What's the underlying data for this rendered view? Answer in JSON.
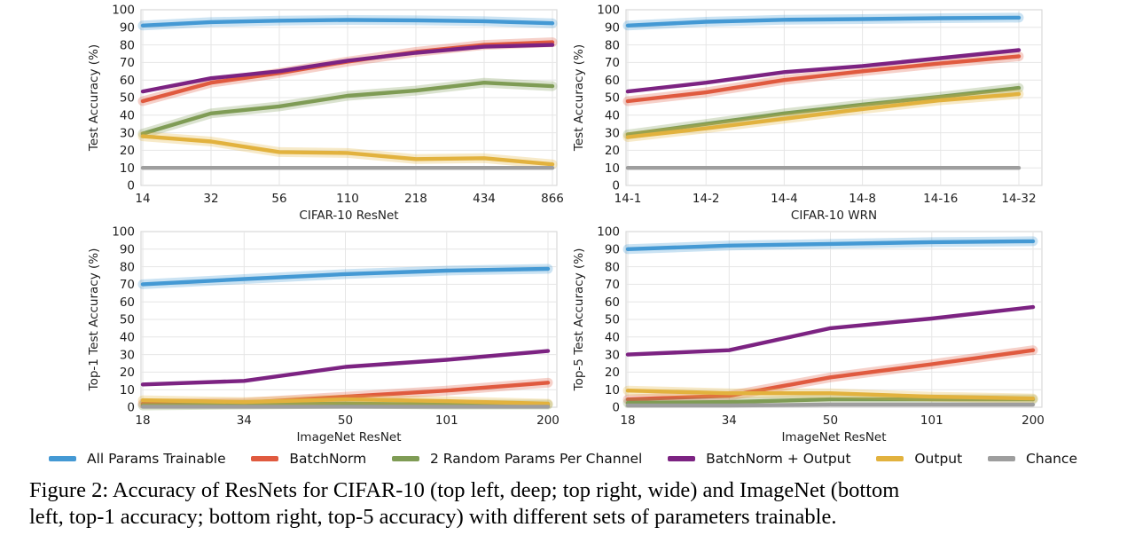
{
  "palette": {
    "blue": "#4499d4",
    "red": "#e05a3f",
    "green": "#7f9c55",
    "purple": "#7c2382",
    "orange": "#e2b23e",
    "gray": "#9e9e9e"
  },
  "chart_data": [
    {
      "type": "line",
      "xlabel": "CIFAR-10 ResNet",
      "ylabel": "Test Accuracy (%)",
      "ylim": [
        0,
        100
      ],
      "ytick_step": 10,
      "grid": true,
      "xpad": [
        2,
        5
      ],
      "categories": [
        "14",
        "32",
        "56",
        "110",
        "218",
        "434",
        "866"
      ],
      "series": [
        {
          "name": "All Params Trainable",
          "color": "#4499d4",
          "band": true,
          "values": [
            91,
            93,
            93.8,
            94.2,
            94,
            93.5,
            92.3
          ]
        },
        {
          "name": "BatchNorm",
          "color": "#e05a3f",
          "band": true,
          "values": [
            48,
            58.5,
            64,
            70.5,
            76,
            80,
            81.5
          ]
        },
        {
          "name": "2 Random Params Per Channel",
          "color": "#7f9c55",
          "band": true,
          "values": [
            29.5,
            41,
            45,
            51,
            54,
            58.5,
            56.5
          ]
        },
        {
          "name": "BatchNorm + Output",
          "color": "#7c2382",
          "band": false,
          "values": [
            53.5,
            61,
            65,
            71,
            75.5,
            79,
            80
          ]
        },
        {
          "name": "Output",
          "color": "#e2b23e",
          "band": true,
          "values": [
            28,
            25,
            19,
            18.5,
            15,
            15.5,
            12
          ]
        },
        {
          "name": "Chance",
          "color": "#9e9e9e",
          "band": false,
          "values": [
            10,
            10,
            10,
            10,
            10,
            10,
            10
          ]
        }
      ]
    },
    {
      "type": "line",
      "xlabel": "CIFAR-10 WRN",
      "ylabel": "Test Accuracy (%)",
      "ylim": [
        0,
        100
      ],
      "ytick_step": 10,
      "grid": true,
      "xpad": [
        2,
        26
      ],
      "categories": [
        "14-1",
        "14-2",
        "14-4",
        "14-8",
        "14-16",
        "14-32"
      ],
      "series": [
        {
          "name": "All Params Trainable",
          "color": "#4499d4",
          "band": true,
          "values": [
            91,
            93.2,
            94.3,
            94.7,
            95.2,
            95.5
          ]
        },
        {
          "name": "BatchNorm",
          "color": "#e05a3f",
          "band": true,
          "values": [
            48,
            53,
            60,
            65,
            69.5,
            73.5
          ]
        },
        {
          "name": "2 Random Params Per Channel",
          "color": "#7f9c55",
          "band": true,
          "values": [
            29,
            35,
            41,
            46,
            50.5,
            55.5
          ]
        },
        {
          "name": "BatchNorm + Output",
          "color": "#7c2382",
          "band": false,
          "values": [
            53.5,
            58.5,
            64.5,
            68,
            72.5,
            77
          ]
        },
        {
          "name": "Output",
          "color": "#e2b23e",
          "band": true,
          "values": [
            27.5,
            32.5,
            38,
            43.5,
            48.5,
            52
          ]
        },
        {
          "name": "Chance",
          "color": "#9e9e9e",
          "band": false,
          "values": [
            10,
            10,
            10,
            10,
            10,
            10
          ]
        }
      ]
    },
    {
      "type": "line",
      "xlabel": "ImageNet ResNet",
      "ylabel": "Top-1 Test Accuracy (%)",
      "ylim": [
        0,
        100
      ],
      "ytick_step": 10,
      "grid": true,
      "xpad": [
        2,
        10
      ],
      "categories": [
        "18",
        "34",
        "50",
        "101",
        "200"
      ],
      "series": [
        {
          "name": "All Params Trainable",
          "color": "#4499d4",
          "band": true,
          "values": [
            70,
            73,
            75.8,
            77.8,
            78.8
          ]
        },
        {
          "name": "BatchNorm",
          "color": "#e05a3f",
          "band": true,
          "values": [
            2,
            2.5,
            6,
            9.5,
            14
          ]
        },
        {
          "name": "2 Random Params Per Channel",
          "color": "#7f9c55",
          "band": true,
          "values": [
            1,
            1.5,
            2,
            1.5,
            1.5
          ]
        },
        {
          "name": "BatchNorm + Output",
          "color": "#7c2382",
          "band": false,
          "values": [
            13,
            15,
            23,
            27,
            32
          ]
        },
        {
          "name": "Output",
          "color": "#e2b23e",
          "band": true,
          "values": [
            4,
            3,
            4.5,
            3.5,
            2
          ]
        },
        {
          "name": "Chance",
          "color": "#9e9e9e",
          "band": false,
          "values": [
            0.3,
            0.3,
            0.3,
            0.3,
            0.3
          ]
        }
      ]
    },
    {
      "type": "line",
      "xlabel": "ImageNet ResNet",
      "ylabel": "Top-5 Test Accuracy (%)",
      "ylim": [
        0,
        100
      ],
      "ytick_step": 10,
      "grid": true,
      "xpad": [
        2,
        10
      ],
      "categories": [
        "18",
        "34",
        "50",
        "101",
        "200"
      ],
      "series": [
        {
          "name": "All Params Trainable",
          "color": "#4499d4",
          "band": true,
          "values": [
            90,
            92,
            93,
            94,
            94.5
          ]
        },
        {
          "name": "BatchNorm",
          "color": "#e05a3f",
          "band": true,
          "values": [
            4.5,
            6.5,
            17,
            24.5,
            32.5
          ]
        },
        {
          "name": "2 Random Params Per Channel",
          "color": "#7f9c55",
          "band": true,
          "values": [
            2.5,
            3,
            4.5,
            4.5,
            4.5
          ]
        },
        {
          "name": "BatchNorm + Output",
          "color": "#7c2382",
          "band": false,
          "values": [
            30,
            32.5,
            45,
            50.5,
            57
          ]
        },
        {
          "name": "Output",
          "color": "#e2b23e",
          "band": true,
          "values": [
            9.5,
            8,
            8,
            6,
            5
          ]
        },
        {
          "name": "Chance",
          "color": "#9e9e9e",
          "band": false,
          "values": [
            1,
            1,
            1.5,
            1.5,
            1.5
          ]
        }
      ]
    }
  ],
  "legend": {
    "position": "bottom",
    "items": [
      {
        "label": "All Params Trainable",
        "color": "#4499d4"
      },
      {
        "label": "BatchNorm",
        "color": "#e05a3f"
      },
      {
        "label": "2 Random Params Per Channel",
        "color": "#7f9c55"
      },
      {
        "label": "BatchNorm + Output",
        "color": "#7c2382"
      },
      {
        "label": "Output",
        "color": "#e2b23e"
      },
      {
        "label": "Chance",
        "color": "#9e9e9e"
      }
    ]
  },
  "caption": {
    "line1": "Figure 2:  Accuracy of ResNets for CIFAR-10 (top left, deep; top right, wide) and ImageNet (bottom",
    "line2": "left, top-1 accuracy; bottom right, top-5 accuracy) with different sets of parameters trainable."
  }
}
